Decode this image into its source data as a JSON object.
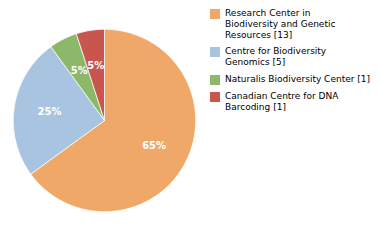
{
  "chart_data": {
    "type": "pie",
    "categories": [
      "Research Center in\nBiodiversity and Genetic\nResources [13]",
      "Centre for Biodiversity\nGenomics [5]",
      "Naturalis Biodiversity Center [1]",
      "Canadian Centre for DNA\nBarcoding [1]"
    ],
    "values": [
      65,
      25,
      5,
      5
    ],
    "value_labels": [
      "65%",
      "25%",
      "5%",
      "5%"
    ],
    "colors": [
      "#f0a868",
      "#a8c4e0",
      "#8db86a",
      "#c8564e"
    ],
    "data_labels": true,
    "legend": "upper right"
  }
}
